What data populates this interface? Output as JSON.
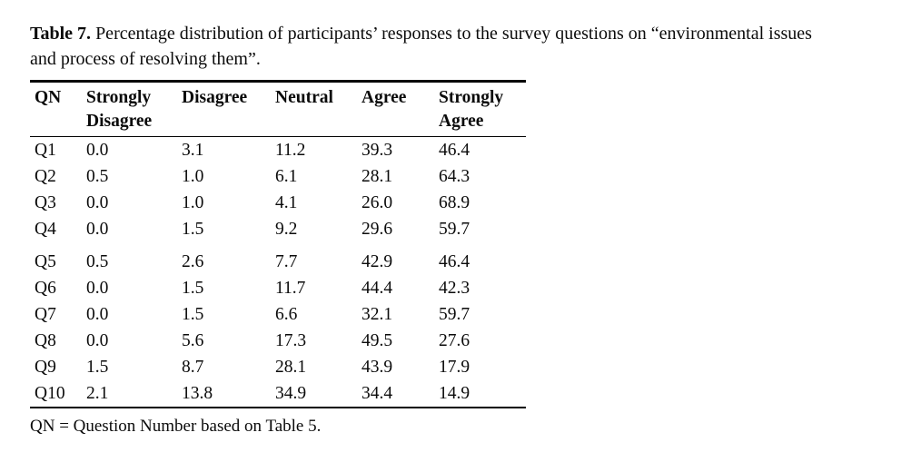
{
  "caption": {
    "label": "Table 7.",
    "line1": "Percentage distribution of participants’ responses to the survey questions on “environmental issues",
    "line2": "and process of resolving them”."
  },
  "table": {
    "columns": [
      "QN",
      "Strongly\nDisagree",
      "Disagree",
      "Neutral",
      "Agree",
      "Strongly\nAgree"
    ],
    "rows": [
      [
        "Q1",
        "0.0",
        "3.1",
        "11.2",
        "39.3",
        "46.4"
      ],
      [
        "Q2",
        "0.5",
        "1.0",
        "6.1",
        "28.1",
        "64.3"
      ],
      [
        "Q3",
        "0.0",
        "1.0",
        "4.1",
        "26.0",
        "68.9"
      ],
      [
        "Q4",
        "0.0",
        "1.5",
        "9.2",
        "29.6",
        "59.7"
      ],
      [
        "Q5",
        "0.5",
        "2.6",
        "7.7",
        "42.9",
        "46.4"
      ],
      [
        "Q6",
        "0.0",
        "1.5",
        "11.7",
        "44.4",
        "42.3"
      ],
      [
        "Q7",
        "0.0",
        "1.5",
        "6.6",
        "32.1",
        "59.7"
      ],
      [
        "Q8",
        "0.0",
        "5.6",
        "17.3",
        "49.5",
        "27.6"
      ],
      [
        "Q9",
        "1.5",
        "8.7",
        "28.1",
        "43.9",
        "17.9"
      ],
      [
        "Q10",
        "2.1",
        "13.8",
        "34.9",
        "34.4",
        "14.9"
      ]
    ]
  },
  "footnote": "QN = Question Number based on Table 5.",
  "colors": {
    "text": "#0b0b0b",
    "rule": "#000000",
    "background": "#ffffff"
  }
}
